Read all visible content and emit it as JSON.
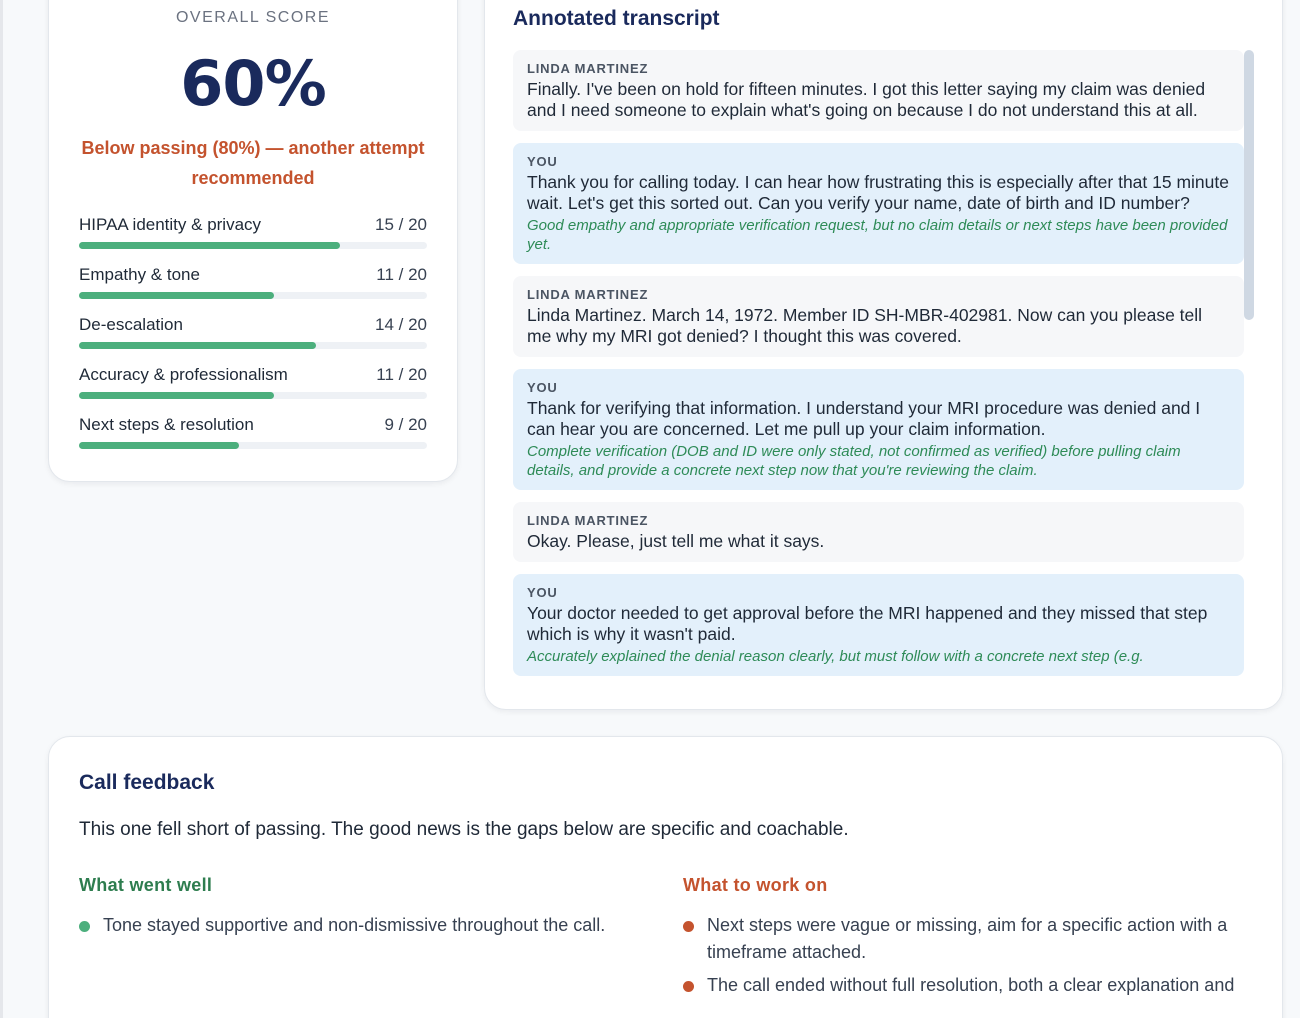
{
  "score": {
    "label": "OVERALL SCORE",
    "value": "60%",
    "note": "Below passing (80%) — another attempt recommended",
    "metrics": [
      {
        "name": "HIPAA identity & privacy",
        "score": "15 / 20",
        "fraction": 0.75
      },
      {
        "name": "Empathy & tone",
        "score": "11 / 20",
        "fraction": 0.56
      },
      {
        "name": "De-escalation",
        "score": "14 / 20",
        "fraction": 0.68
      },
      {
        "name": "Accuracy & professionalism",
        "score": "11 / 20",
        "fraction": 0.56
      },
      {
        "name": "Next steps & resolution",
        "score": "9 / 20",
        "fraction": 0.46
      }
    ]
  },
  "transcript": {
    "title": "Annotated transcript",
    "messages": [
      {
        "role": "caller",
        "speaker": "LINDA MARTINEZ",
        "text": "Finally. I've been on hold for fifteen minutes. I got this letter saying my claim was denied and I need someone to explain what's going on because I do not understand this at all.",
        "annotation": ""
      },
      {
        "role": "agent",
        "speaker": "YOU",
        "text": "Thank you for calling today. I can hear how frustrating this is especially after that 15 minute wait. Let's get this sorted out. Can you verify your name, date of birth and ID number?",
        "annotation": "Good empathy and appropriate verification request, but no claim details or next steps have been provided yet."
      },
      {
        "role": "caller",
        "speaker": "LINDA MARTINEZ",
        "text": "Linda Martinez. March 14, 1972. Member ID SH-MBR-402981. Now can you please tell me why my MRI got denied? I thought this was covered.",
        "annotation": ""
      },
      {
        "role": "agent",
        "speaker": "YOU",
        "text": "Thank for verifying that information. I understand your MRI procedure was denied and I can hear you are concerned. Let me pull up your claim information.",
        "annotation": "Complete verification (DOB and ID were only stated, not confirmed as verified) before pulling claim details, and provide a concrete next step now that you're reviewing the claim."
      },
      {
        "role": "caller",
        "speaker": "LINDA MARTINEZ",
        "text": "Okay. Please, just tell me what it says.",
        "annotation": ""
      },
      {
        "role": "agent",
        "speaker": "YOU",
        "text": "Your doctor needed to get approval before the MRI happened and they missed that step which is why it wasn't paid.",
        "annotation": "Accurately explained the denial reason clearly, but must follow with a concrete next step (e.g."
      }
    ]
  },
  "feedback": {
    "title": "Call feedback",
    "summary": "This one fell short of passing. The good news is the gaps below are specific and coachable.",
    "went_well": {
      "title": "What went well",
      "items": [
        "Tone stayed supportive and non-dismissive throughout the call."
      ]
    },
    "work_on": {
      "title": "What to work on",
      "items": [
        "Next steps were vague or missing, aim for a specific action with a timeframe attached.",
        "The call ended without full resolution, both a clear explanation and"
      ]
    }
  }
}
